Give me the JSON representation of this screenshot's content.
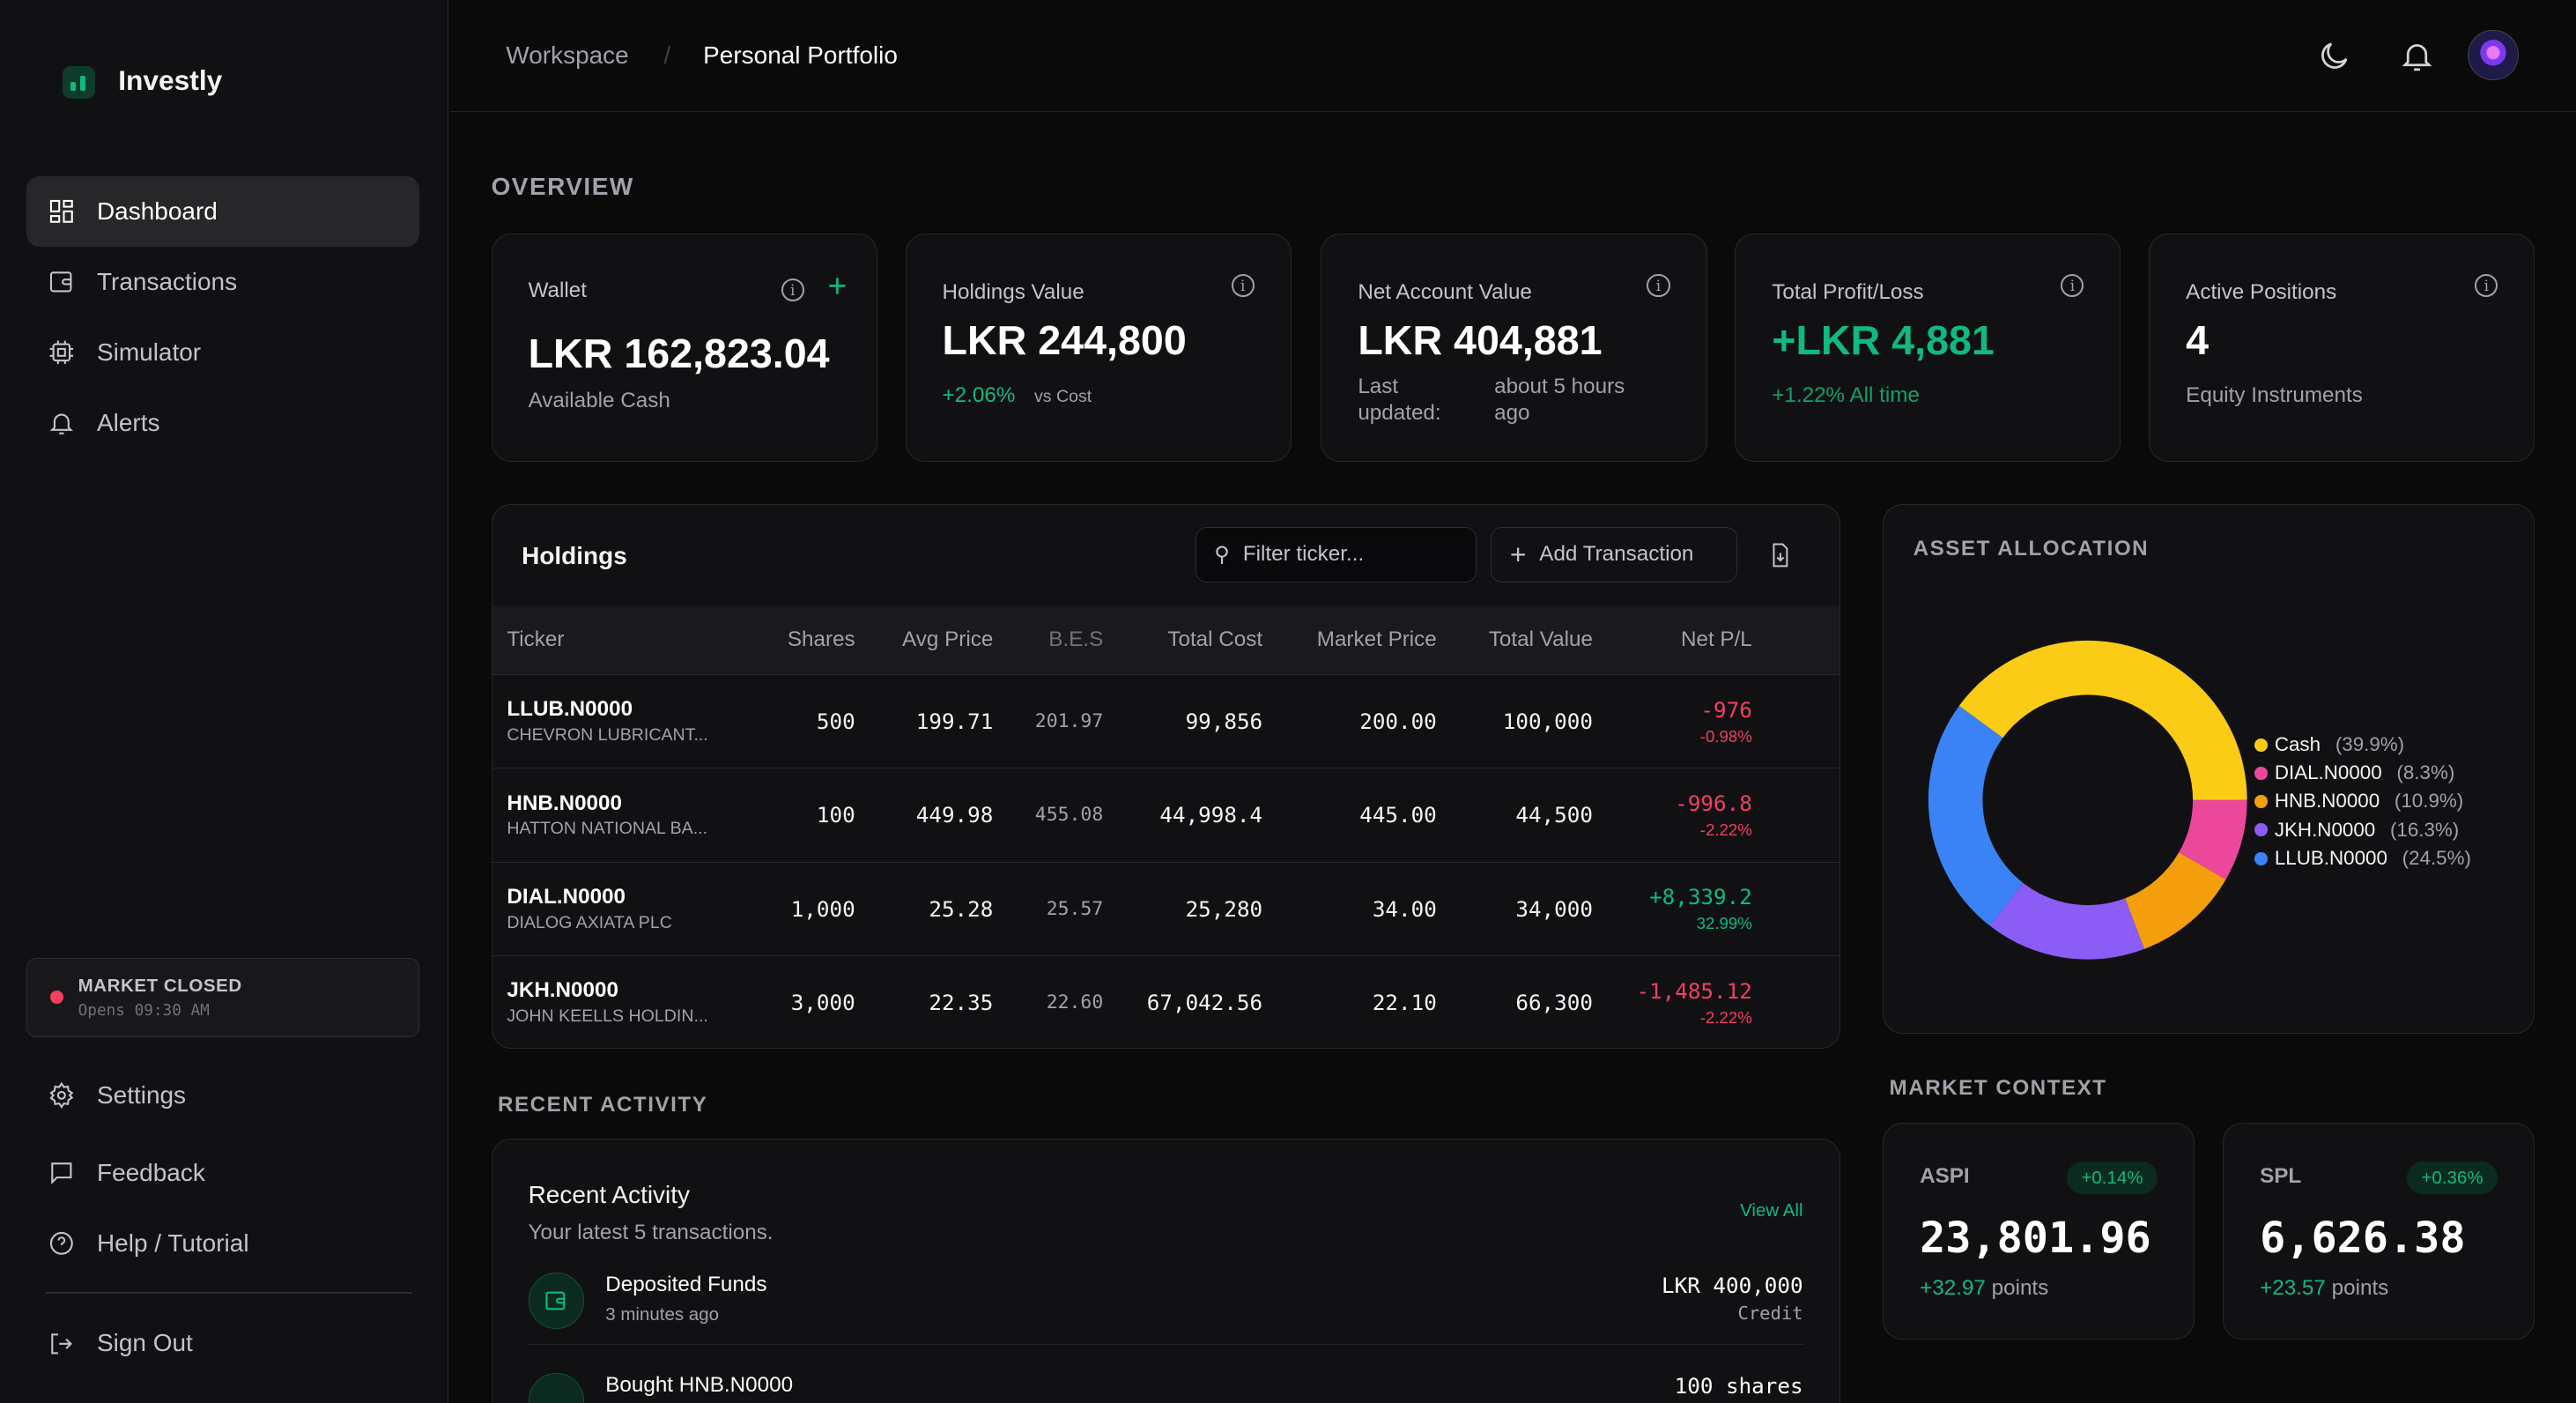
{
  "app": {
    "name": "Investly"
  },
  "sidebar": {
    "items": [
      {
        "label": "Dashboard",
        "icon": "dashboard-icon",
        "active": true
      },
      {
        "label": "Transactions",
        "icon": "wallet-icon"
      },
      {
        "label": "Simulator",
        "icon": "cpu-icon"
      },
      {
        "label": "Alerts",
        "icon": "bell-icon"
      }
    ],
    "market": {
      "status": "MARKET CLOSED",
      "opens": "Opens 09:30 AM"
    },
    "bottom": [
      {
        "label": "Settings",
        "icon": "gear-icon"
      },
      {
        "label": "Feedback",
        "icon": "message-icon"
      },
      {
        "label": "Help / Tutorial",
        "icon": "help-icon"
      }
    ],
    "sign_out": "Sign Out"
  },
  "header": {
    "breadcrumb": [
      "Workspace",
      "Personal Portfolio"
    ],
    "separator": "/"
  },
  "overview": {
    "title": "OVERVIEW",
    "cards": [
      {
        "label": "Wallet",
        "value": "LKR 162,823.04",
        "sub": "Available Cash"
      },
      {
        "label": "Holdings Value",
        "value": "LKR 244,800",
        "change": "+2.06%",
        "sub": "vs Cost"
      },
      {
        "label": "Net Account Value",
        "value": "LKR 404,881",
        "sub_label": "Last updated:",
        "sub": "about 5 hours ago"
      },
      {
        "label": "Total Profit/Loss",
        "value": "+LKR 4,881",
        "sub": "+1.22% All time"
      },
      {
        "label": "Active Positions",
        "value": "4",
        "sub": "Equity Instruments"
      }
    ]
  },
  "holdings": {
    "title": "Holdings",
    "filter_placeholder": "Filter ticker...",
    "add_label": "Add Transaction",
    "columns": [
      "Ticker",
      "Shares",
      "Avg Price",
      "B.E.S",
      "Total Cost",
      "Market Price",
      "Total Value",
      "Net P/L"
    ],
    "rows": [
      {
        "ticker": "LLUB.N0000",
        "name": "CHEVRON LUBRICANT...",
        "shares": "500",
        "avg": "199.71",
        "bes": "201.97",
        "cost": "99,856",
        "market": "200.00",
        "value": "100,000",
        "pl": "-976",
        "plpct": "-0.98%",
        "positive": false
      },
      {
        "ticker": "HNB.N0000",
        "name": "HATTON NATIONAL BA...",
        "shares": "100",
        "avg": "449.98",
        "bes": "455.08",
        "cost": "44,998.4",
        "market": "445.00",
        "value": "44,500",
        "pl": "-996.8",
        "plpct": "-2.22%",
        "positive": false
      },
      {
        "ticker": "DIAL.N0000",
        "name": "DIALOG AXIATA PLC",
        "shares": "1,000",
        "avg": "25.28",
        "bes": "25.57",
        "cost": "25,280",
        "market": "34.00",
        "value": "34,000",
        "pl": "+8,339.2",
        "plpct": "32.99%",
        "positive": true
      },
      {
        "ticker": "JKH.N0000",
        "name": "JOHN KEELLS HOLDIN...",
        "shares": "3,000",
        "avg": "22.35",
        "bes": "22.60",
        "cost": "67,042.56",
        "market": "22.10",
        "value": "66,300",
        "pl": "-1,485.12",
        "plpct": "-2.22%",
        "positive": false
      }
    ]
  },
  "chart_data": {
    "type": "pie",
    "title": "ASSET ALLOCATION",
    "donut": true,
    "slices": [
      {
        "label": "DIAL.N0000",
        "pct_label": "(8.3%)",
        "value": 8.3,
        "color": "#ec4899"
      },
      {
        "label": "HNB.N0000",
        "pct_label": "(10.9%)",
        "value": 10.9,
        "color": "#f59e0b"
      },
      {
        "label": "JKH.N0000",
        "pct_label": "(16.3%)",
        "value": 16.3,
        "color": "#8b5cf6"
      },
      {
        "label": "LLUB.N0000",
        "pct_label": "(24.5%)",
        "value": 24.5,
        "color": "#3b82f6"
      },
      {
        "label": "Cash",
        "pct_label": "(39.9%)",
        "value": 39.9,
        "color": "#facc15"
      }
    ],
    "legend_order": [
      "Cash",
      "DIAL.N0000",
      "HNB.N0000",
      "JKH.N0000",
      "LLUB.N0000"
    ],
    "legend": "right"
  },
  "activity": {
    "section": "RECENT ACTIVITY",
    "title": "Recent Activity",
    "subtitle": "Your latest 5 transactions.",
    "view_all": "View All",
    "items": [
      {
        "title": "Deposited Funds",
        "time": "3 minutes ago",
        "amount": "LKR 400,000",
        "kind": "Credit"
      },
      {
        "title": "Bought HNB.N0000",
        "time": "",
        "amount": "100 shares",
        "kind": ""
      }
    ]
  },
  "market_context": {
    "title": "MARKET CONTEXT",
    "indices": [
      {
        "name": "ASPI",
        "badge": "+0.14%",
        "value": "23,801.96",
        "change": "+32.97",
        "unit": "points"
      },
      {
        "name": "SPL",
        "badge": "+0.36%",
        "value": "6,626.38",
        "change": "+23.57",
        "unit": "points"
      }
    ]
  },
  "colors": {
    "accent": "#10b981",
    "negative": "#f43f5e"
  }
}
